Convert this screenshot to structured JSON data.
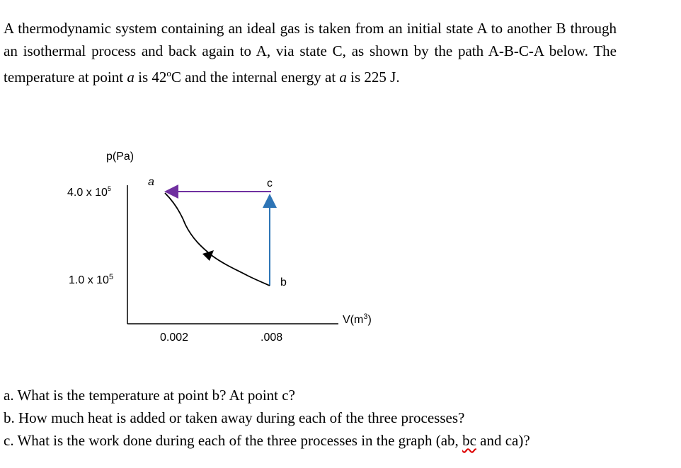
{
  "problem": {
    "parts": [
      "A thermodynamic system containing an ideal gas is taken from an initial state A to another B through an isothermal process and back again to A, via state C, as shown by the path A-B-C-A below. The temperature at point ",
      "a",
      " is 42",
      "o",
      "C and the internal energy at ",
      "a",
      " is 225 J."
    ]
  },
  "diagram": {
    "y_axis_label": "p(Pa)",
    "x_axis_label": "V(m",
    "x_axis_label_sup": "3",
    "x_axis_label_end": ")",
    "point_a": "a",
    "point_b": "b",
    "point_c": "c",
    "p_high": "4.0 x 10",
    "p_high_exp": "5",
    "p_low": "1.0 x 10",
    "p_low_exp": "5",
    "v_low": "0.002",
    "v_high": ".008"
  },
  "questions": [
    {
      "parts": [
        "a. What is the temperature at point b?  At point c?"
      ]
    },
    {
      "parts": [
        "b. How much heat is added or taken away during each of the three processes?"
      ]
    },
    {
      "parts": [
        "c. What is the work done during each of the three processes in the graph (ab, ",
        "bc",
        " and ca)?"
      ]
    }
  ]
}
